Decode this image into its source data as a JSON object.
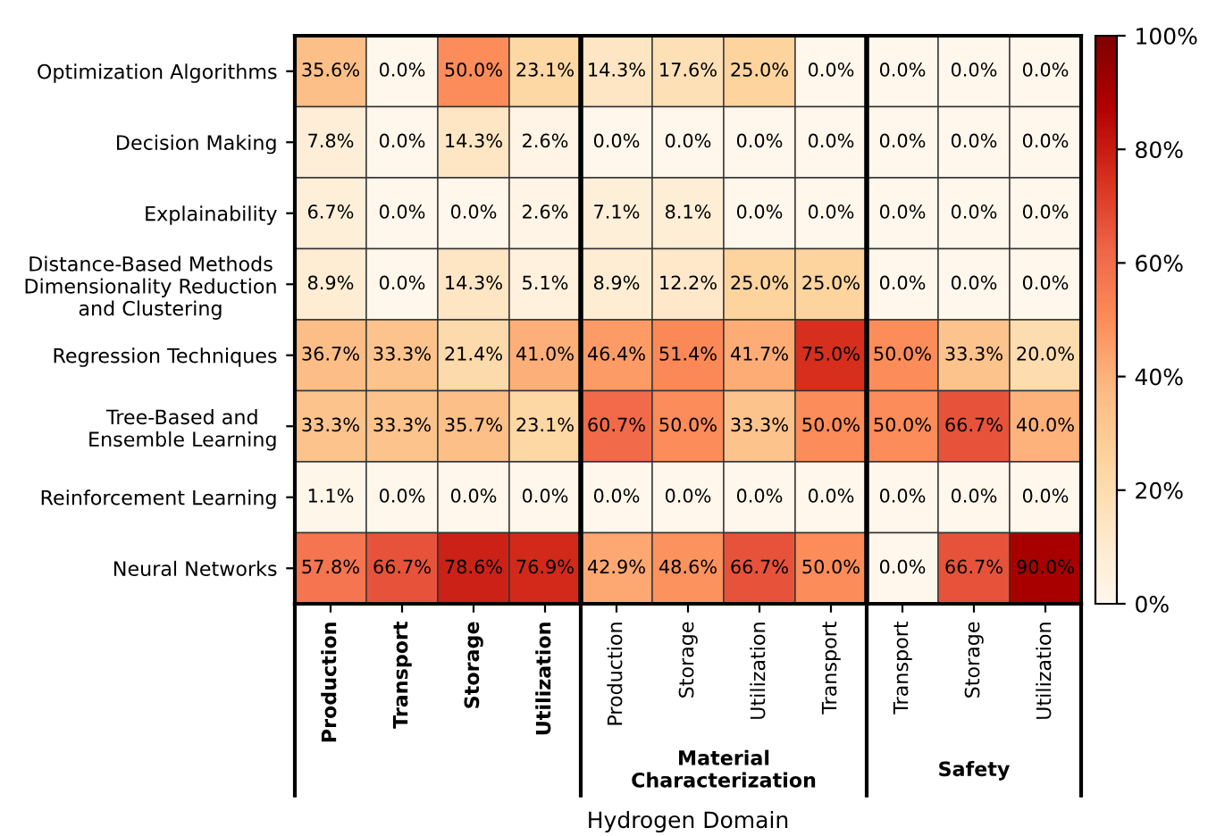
{
  "chart_data": {
    "type": "heatmap",
    "xlabel": "Hydrogen Domain",
    "categories": [
      "Production",
      "Transport",
      "Storage",
      "Utilization",
      "Production",
      "Storage",
      "Utilization",
      "Transport",
      "Transport",
      "Storage",
      "Utilization"
    ],
    "y_categories": [
      "Optimization Algorithms",
      "Decision Making",
      "Explainability",
      "Distance-Based Methods\nDimensionality Reduction\nand Clustering",
      "Regression Techniques",
      "Tree-Based and\nEnsemble Learning",
      "Reinforcement Learning",
      "Neural Networks"
    ],
    "cells": [
      [
        35.6,
        0,
        50,
        23.1,
        14.3,
        17.6,
        25,
        0,
        0,
        0,
        0
      ],
      [
        7.8,
        0,
        14.3,
        2.6,
        0,
        0,
        0,
        0,
        0,
        0,
        0
      ],
      [
        6.7,
        0,
        0,
        2.6,
        7.1,
        8.1,
        0,
        0,
        0,
        0,
        0
      ],
      [
        8.9,
        0,
        14.3,
        5.1,
        8.9,
        12.2,
        25,
        25,
        0,
        0,
        0
      ],
      [
        36.7,
        33.3,
        21.4,
        41,
        46.4,
        51.4,
        41.7,
        75,
        50,
        33.3,
        20
      ],
      [
        33.3,
        33.3,
        35.7,
        23.1,
        60.7,
        50,
        33.3,
        50,
        50,
        66.7,
        40
      ],
      [
        1.1,
        0,
        0,
        0,
        0,
        0,
        0,
        0,
        0,
        0,
        0
      ],
      [
        57.8,
        66.7,
        78.6,
        76.9,
        42.9,
        48.6,
        66.7,
        50,
        0,
        66.7,
        90
      ]
    ],
    "cell_labels": [
      [
        "35.6%",
        "0.0%",
        "50.0%",
        "23.1%",
        "14.3%",
        "17.6%",
        "25.0%",
        "0.0%",
        "0.0%",
        "0.0%",
        "0.0%"
      ],
      [
        "7.8%",
        "0.0%",
        "14.3%",
        "2.6%",
        "0.0%",
        "0.0%",
        "0.0%",
        "0.0%",
        "0.0%",
        "0.0%",
        "0.0%"
      ],
      [
        "6.7%",
        "0.0%",
        "0.0%",
        "2.6%",
        "7.1%",
        "8.1%",
        "0.0%",
        "0.0%",
        "0.0%",
        "0.0%",
        "0.0%"
      ],
      [
        "8.9%",
        "0.0%",
        "14.3%",
        "5.1%",
        "8.9%",
        "12.2%",
        "25.0%",
        "25.0%",
        "0.0%",
        "0.0%",
        "0.0%"
      ],
      [
        "36.7%",
        "33.3%",
        "21.4%",
        "41.0%",
        "46.4%",
        "51.4%",
        "41.7%",
        "75.0%",
        "50.0%",
        "33.3%",
        "20.0%"
      ],
      [
        "33.3%",
        "33.3%",
        "35.7%",
        "23.1%",
        "60.7%",
        "50.0%",
        "33.3%",
        "50.0%",
        "50.0%",
        "66.7%",
        "40.0%"
      ],
      [
        "1.1%",
        "0.0%",
        "0.0%",
        "0.0%",
        "0.0%",
        "0.0%",
        "0.0%",
        "0.0%",
        "0.0%",
        "0.0%",
        "0.0%"
      ],
      [
        "57.8%",
        "66.7%",
        "78.6%",
        "76.9%",
        "42.9%",
        "48.6%",
        "66.7%",
        "50.0%",
        "0.0%",
        "66.7%",
        "90.0%"
      ]
    ],
    "clim": [
      0,
      100
    ],
    "cticks": [
      {
        "value": 0,
        "label": "0%"
      },
      {
        "value": 20,
        "label": "20%"
      },
      {
        "value": 40,
        "label": "40%"
      },
      {
        "value": 60,
        "label": "60%"
      },
      {
        "value": 80,
        "label": "80%"
      },
      {
        "value": 100,
        "label": "100%"
      }
    ],
    "annotations": [
      "Material\nCharacterization",
      "Safety"
    ]
  }
}
